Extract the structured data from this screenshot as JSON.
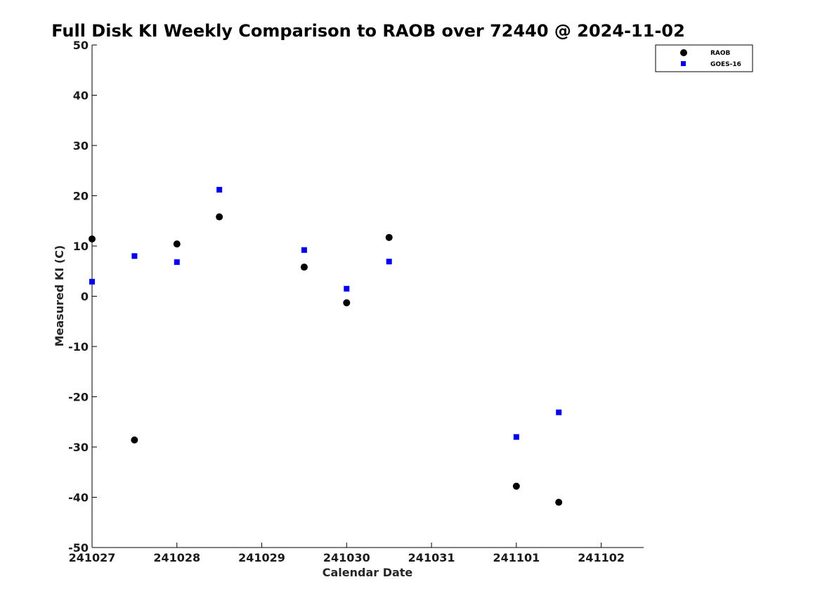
{
  "chart_data": {
    "type": "scatter",
    "title": "Full Disk KI Weekly Comparison to RAOB over 72440 @ 2024-11-02",
    "xlabel": "Calendar Date",
    "ylabel": "Measured KI (C)",
    "x_tick_labels": [
      "241027",
      "241028",
      "241029",
      "241030",
      "241031",
      "241101",
      "241102"
    ],
    "y_tick_labels": [
      "50",
      "40",
      "30",
      "20",
      "10",
      "0",
      "-10",
      "-20",
      "-30",
      "-40",
      "-50"
    ],
    "xlim": [
      "2024-10-27T00:00",
      "2024-11-02T12:00"
    ],
    "ylim": [
      -50,
      50
    ],
    "grid": false,
    "legend_position": "top-right",
    "series": [
      {
        "name": "RAOB",
        "marker": "circle",
        "color": "#000000",
        "points": [
          {
            "x": "2024-10-27T00:00",
            "y": 11.4
          },
          {
            "x": "2024-10-27T12:00",
            "y": -28.6
          },
          {
            "x": "2024-10-28T00:00",
            "y": 10.4
          },
          {
            "x": "2024-10-28T12:00",
            "y": 15.8
          },
          {
            "x": "2024-10-29T12:00",
            "y": 5.8
          },
          {
            "x": "2024-10-30T00:00",
            "y": -1.3
          },
          {
            "x": "2024-10-30T12:00",
            "y": 11.7
          },
          {
            "x": "2024-11-01T00:00",
            "y": -37.8
          },
          {
            "x": "2024-11-01T12:00",
            "y": -41.0
          }
        ]
      },
      {
        "name": "GOES-16",
        "marker": "square",
        "color": "#0000ee",
        "points": [
          {
            "x": "2024-10-27T00:00",
            "y": 2.9
          },
          {
            "x": "2024-10-27T12:00",
            "y": 8.0
          },
          {
            "x": "2024-10-28T00:00",
            "y": 6.8
          },
          {
            "x": "2024-10-28T12:00",
            "y": 21.2
          },
          {
            "x": "2024-10-29T12:00",
            "y": 9.2
          },
          {
            "x": "2024-10-30T00:00",
            "y": 1.5
          },
          {
            "x": "2024-10-30T12:00",
            "y": 6.9
          },
          {
            "x": "2024-11-01T00:00",
            "y": -28.0
          },
          {
            "x": "2024-11-01T12:00",
            "y": -23.1
          }
        ]
      }
    ]
  }
}
